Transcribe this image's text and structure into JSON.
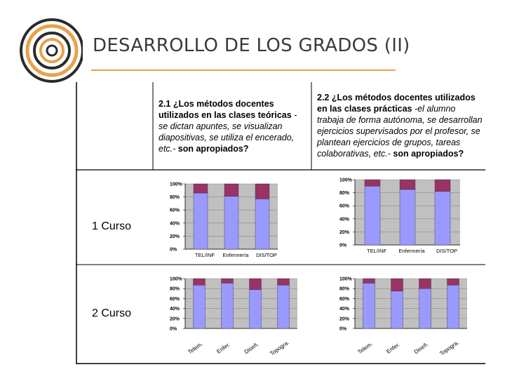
{
  "slide": {
    "title": "DESARROLLO DE LOS GRADOS (II)",
    "colors": {
      "accent": "#e8a24a",
      "series_main": "#9a99ff",
      "series_top": "#993366",
      "plot_bg": "#c0c0c0"
    }
  },
  "questions": [
    {
      "lead": "2.1 ¿Los métodos docentes utilizados en las clases teóricas",
      "examples": " -se dictan apuntes, se visualizan diapositivas, se utiliza el encerado, etc.-",
      "tail": " son apropiados?"
    },
    {
      "lead": "2.2 ¿Los métodos docentes utilizados en las clases prácticas",
      "examples": " -el alumno trabaja de forma autónoma, se desarrollan ejercicios supervisados por el profesor, se plantean ejercicios de grupos, tareas colaborativas, etc.-",
      "tail": " son apropiados?"
    }
  ],
  "rows": [
    "1 Curso",
    "2 Curso"
  ],
  "chart_data": [
    {
      "type": "bar",
      "stacked": true,
      "categories": [
        "TEL/INF",
        "Enfermería",
        "DIS/TOP"
      ],
      "series": [
        {
          "values": [
            86,
            81,
            77
          ]
        },
        {
          "values": [
            14,
            19,
            23
          ]
        }
      ],
      "yticks": [
        "0%",
        "20%",
        "40%",
        "60%",
        "80%",
        "100%"
      ],
      "ylim": [
        0,
        100
      ]
    },
    {
      "type": "bar",
      "stacked": true,
      "categories": [
        "TEL/INF",
        "Enfermería",
        "DIS/TOP"
      ],
      "series": [
        {
          "values": [
            90,
            85,
            82
          ]
        },
        {
          "values": [
            10,
            15,
            18
          ]
        }
      ],
      "yticks": [
        "0%",
        "20%",
        "40%",
        "60%",
        "80%",
        "100%"
      ],
      "ylim": [
        0,
        100
      ]
    },
    {
      "type": "bar",
      "stacked": true,
      "categories": [
        "Telem.",
        "Enfer.",
        "Diseñ.",
        "Topogra."
      ],
      "series": [
        {
          "values": [
            87,
            91,
            78,
            87
          ]
        },
        {
          "values": [
            13,
            9,
            22,
            13
          ]
        }
      ],
      "yticks": [
        "0%",
        "20%",
        "40%",
        "60%",
        "80%",
        "100%"
      ],
      "ylim": [
        0,
        100
      ]
    },
    {
      "type": "bar",
      "stacked": true,
      "categories": [
        "Telem.",
        "Enfer.",
        "Diseñ.",
        "Topogra."
      ],
      "series": [
        {
          "values": [
            91,
            75,
            80,
            87
          ]
        },
        {
          "values": [
            9,
            25,
            20,
            13
          ]
        }
      ],
      "yticks": [
        "0%",
        "20%",
        "40%",
        "60%",
        "80%",
        "100%"
      ],
      "ylim": [
        0,
        100
      ]
    }
  ]
}
